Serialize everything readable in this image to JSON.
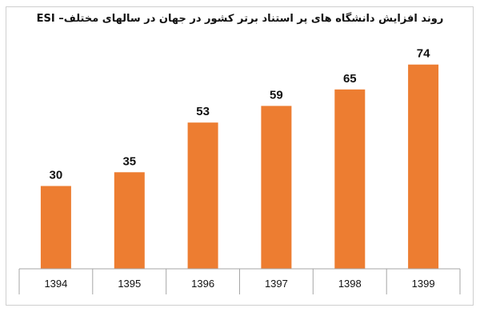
{
  "chart_data": {
    "type": "bar",
    "title": "روند افزایش دانشگاه های پر استناد برتر کشور در جهان در سالهای مختلف– ESI",
    "categories": [
      "1394",
      "1395",
      "1396",
      "1397",
      "1398",
      "1399"
    ],
    "values": [
      30,
      35,
      53,
      59,
      65,
      74
    ],
    "ylim": [
      0,
      80
    ],
    "bar_color": "#ed7d31",
    "grid": false,
    "data_labels": true
  }
}
